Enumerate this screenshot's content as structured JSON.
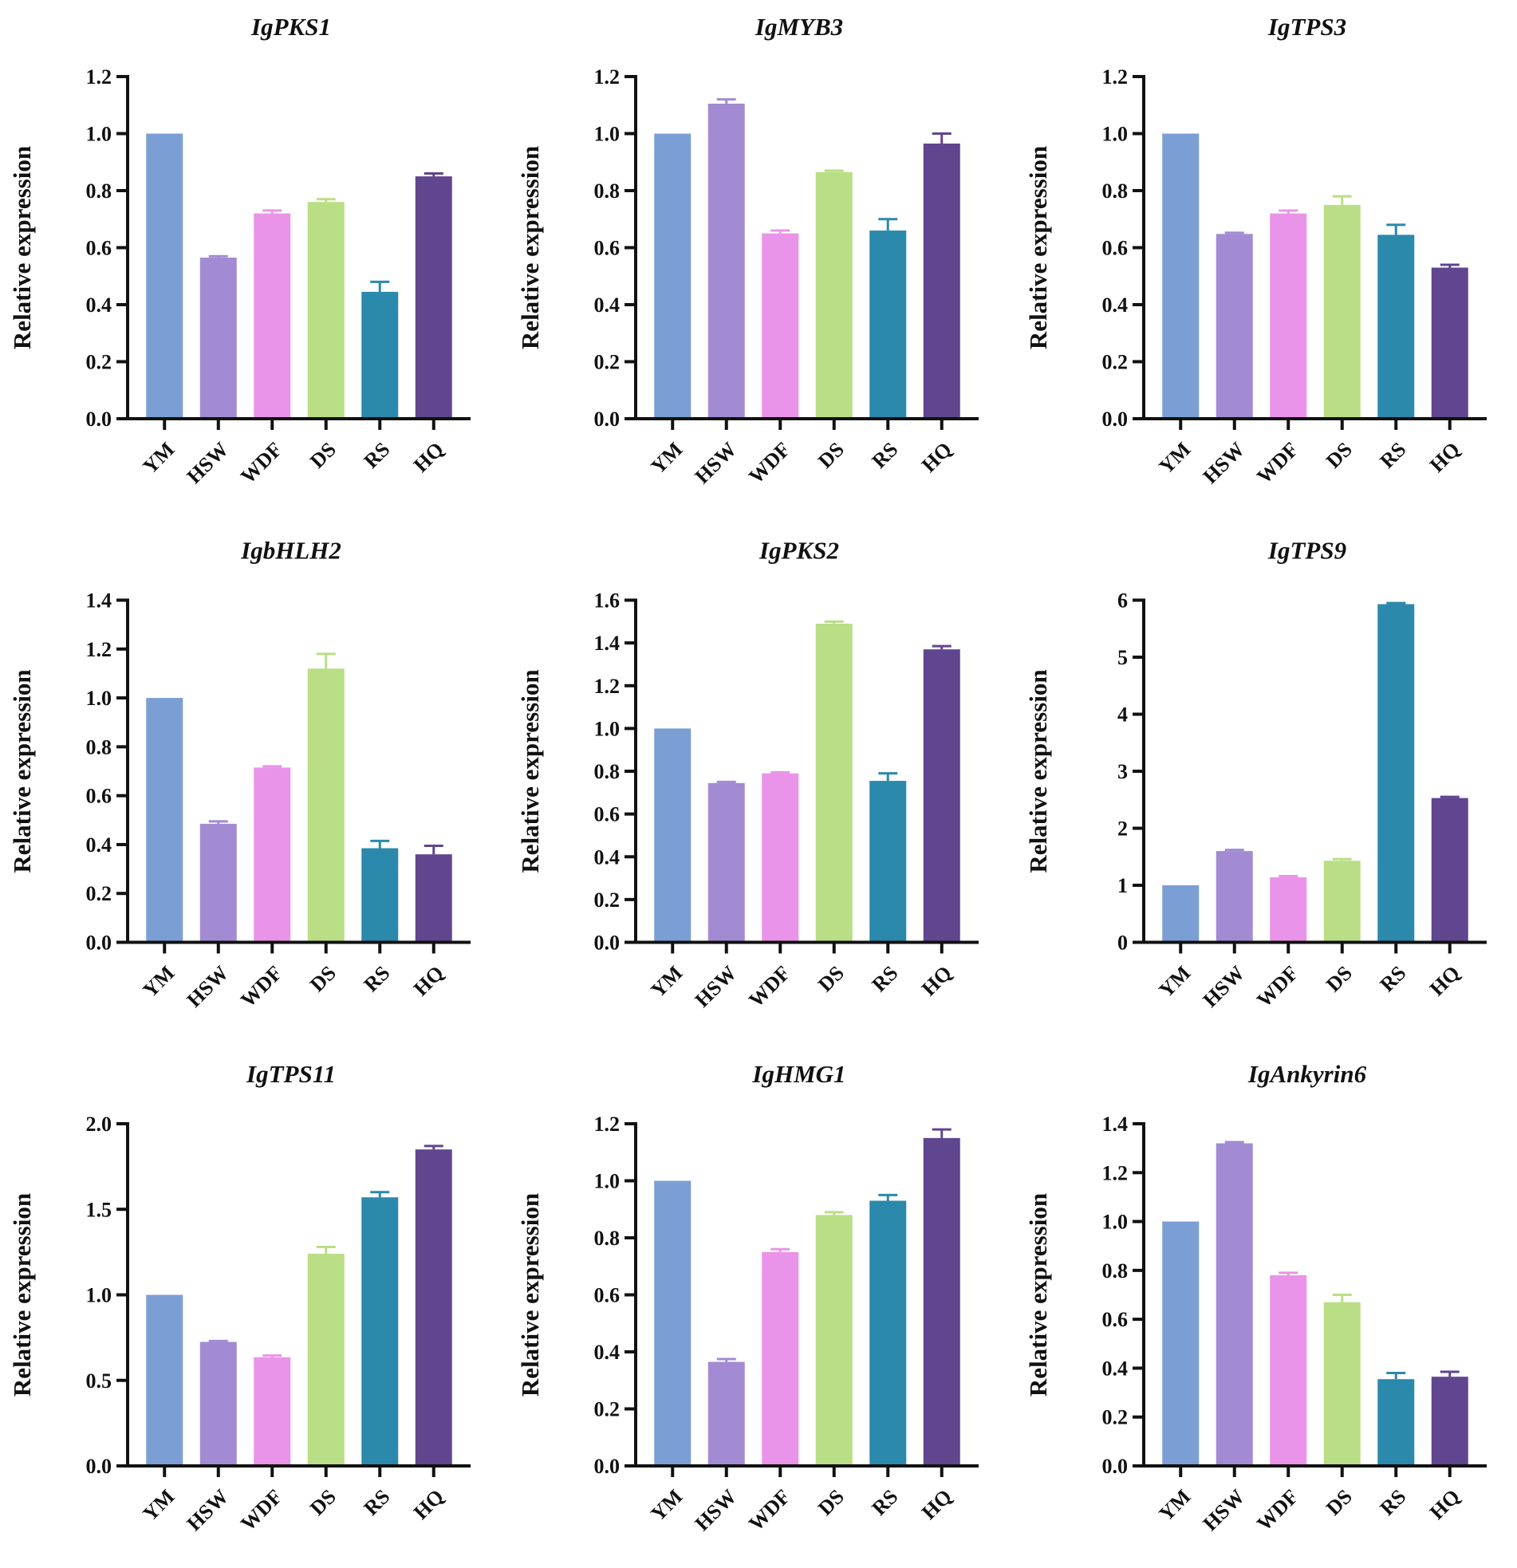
{
  "chart_data": [
    {
      "type": "bar",
      "title": "IgPKS1",
      "ylabel": "Relative expression",
      "xlabel": "",
      "categories": [
        "YM",
        "HSW",
        "WDF",
        "DS",
        "RS",
        "HQ"
      ],
      "values": [
        1.0,
        0.565,
        0.72,
        0.76,
        0.445,
        0.85
      ],
      "errors": [
        0,
        0.005,
        0.01,
        0.01,
        0.035,
        0.01
      ],
      "ylim": [
        0,
        1.2
      ],
      "yticks": [
        "0.0",
        "0.2",
        "0.4",
        "0.6",
        "0.8",
        "1.0",
        "1.2"
      ],
      "ystep": 0.2,
      "grid": false
    },
    {
      "type": "bar",
      "title": "IgMYB3",
      "ylabel": "Relative expression",
      "xlabel": "",
      "categories": [
        "YM",
        "HSW",
        "WDF",
        "DS",
        "RS",
        "HQ"
      ],
      "values": [
        1.0,
        1.105,
        0.65,
        0.865,
        0.66,
        0.965
      ],
      "errors": [
        0,
        0.015,
        0.01,
        0.005,
        0.04,
        0.035
      ],
      "ylim": [
        0,
        1.2
      ],
      "yticks": [
        "0.0",
        "0.2",
        "0.4",
        "0.6",
        "0.8",
        "1.0",
        "1.2"
      ],
      "ystep": 0.2,
      "grid": false
    },
    {
      "type": "bar",
      "title": "IgTPS3",
      "ylabel": "Relative expression",
      "xlabel": "",
      "categories": [
        "YM",
        "HSW",
        "WDF",
        "DS",
        "RS",
        "HQ"
      ],
      "values": [
        1.0,
        0.648,
        0.72,
        0.75,
        0.645,
        0.53
      ],
      "errors": [
        0,
        0.004,
        0.01,
        0.03,
        0.035,
        0.01
      ],
      "ylim": [
        0,
        1.2
      ],
      "yticks": [
        "0.0",
        "0.2",
        "0.4",
        "0.6",
        "0.8",
        "1.0",
        "1.2"
      ],
      "ystep": 0.2,
      "grid": false
    },
    {
      "type": "bar",
      "title": "IgbHLH2",
      "ylabel": "Relative expression",
      "xlabel": "",
      "categories": [
        "YM",
        "HSW",
        "WDF",
        "DS",
        "RS",
        "HQ"
      ],
      "values": [
        1.0,
        0.485,
        0.715,
        1.12,
        0.385,
        0.36
      ],
      "errors": [
        0,
        0.01,
        0.005,
        0.06,
        0.03,
        0.035
      ],
      "ylim": [
        0,
        1.4
      ],
      "yticks": [
        "0.0",
        "0.2",
        "0.4",
        "0.6",
        "0.8",
        "1.0",
        "1.2",
        "1.4"
      ],
      "ystep": 0.2,
      "grid": false
    },
    {
      "type": "bar",
      "title": "IgPKS2",
      "ylabel": "Relative expression",
      "xlabel": "",
      "categories": [
        "YM",
        "HSW",
        "WDF",
        "DS",
        "RS",
        "HQ"
      ],
      "values": [
        1.0,
        0.745,
        0.79,
        1.49,
        0.755,
        1.37
      ],
      "errors": [
        0,
        0.005,
        0.005,
        0.01,
        0.035,
        0.015
      ],
      "ylim": [
        0,
        1.6
      ],
      "yticks": [
        "0.0",
        "0.2",
        "0.4",
        "0.6",
        "0.8",
        "1.0",
        "1.2",
        "1.4",
        "1.6"
      ],
      "ystep": 0.2,
      "grid": false
    },
    {
      "type": "bar",
      "title": "IgTPS9",
      "ylabel": "Relative expression",
      "xlabel": "",
      "categories": [
        "YM",
        "HSW",
        "WDF",
        "DS",
        "RS",
        "HQ"
      ],
      "values": [
        1.0,
        1.6,
        1.14,
        1.43,
        5.93,
        2.53
      ],
      "errors": [
        0,
        0.02,
        0.02,
        0.03,
        0.02,
        0.02
      ],
      "ylim": [
        0,
        6
      ],
      "yticks": [
        "0",
        "1",
        "2",
        "3",
        "4",
        "5",
        "6"
      ],
      "ystep": 1,
      "grid": false
    },
    {
      "type": "bar",
      "title": "IgTPS11",
      "ylabel": "Relative expression",
      "xlabel": "",
      "categories": [
        "YM",
        "HSW",
        "WDF",
        "DS",
        "RS",
        "HQ"
      ],
      "values": [
        1.0,
        0.725,
        0.635,
        1.24,
        1.57,
        1.85
      ],
      "errors": [
        0,
        0.005,
        0.01,
        0.04,
        0.03,
        0.02
      ],
      "ylim": [
        0,
        2.0
      ],
      "yticks": [
        "0.0",
        "0.5",
        "1.0",
        "1.5",
        "2.0"
      ],
      "ystep": 0.5,
      "grid": false
    },
    {
      "type": "bar",
      "title": "IgHMG1",
      "ylabel": "Relative expression",
      "xlabel": "",
      "categories": [
        "YM",
        "HSW",
        "WDF",
        "DS",
        "RS",
        "HQ"
      ],
      "values": [
        1.0,
        0.365,
        0.75,
        0.88,
        0.93,
        1.15
      ],
      "errors": [
        0,
        0.01,
        0.01,
        0.01,
        0.02,
        0.03
      ],
      "ylim": [
        0,
        1.2
      ],
      "yticks": [
        "0.0",
        "0.2",
        "0.4",
        "0.6",
        "0.8",
        "1.0",
        "1.2"
      ],
      "ystep": 0.2,
      "grid": false
    },
    {
      "type": "bar",
      "title": "IgAnkyrin6",
      "ylabel": "Relative expression",
      "xlabel": "",
      "categories": [
        "YM",
        "HSW",
        "WDF",
        "DS",
        "RS",
        "HQ"
      ],
      "values": [
        1.0,
        1.32,
        0.78,
        0.67,
        0.355,
        0.365
      ],
      "errors": [
        0,
        0.005,
        0.01,
        0.03,
        0.025,
        0.02
      ],
      "ylim": [
        0,
        1.4
      ],
      "yticks": [
        "0.0",
        "0.2",
        "0.4",
        "0.6",
        "0.8",
        "1.0",
        "1.2",
        "1.4"
      ],
      "ystep": 0.2,
      "grid": false
    }
  ],
  "colors": [
    "#7b9fd4",
    "#a38bd3",
    "#e994e8",
    "#bade85",
    "#2b89ab",
    "#60458f"
  ]
}
